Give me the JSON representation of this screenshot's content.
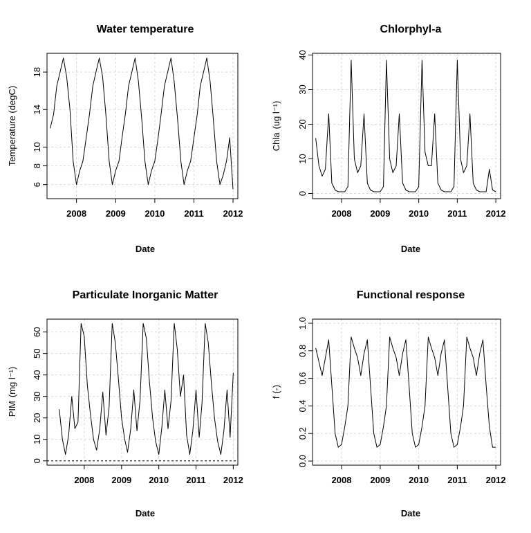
{
  "chart_data": [
    {
      "type": "line",
      "title": "Water temperature",
      "xlabel": "Date",
      "ylabel": "Temperature (degC)",
      "xticks": [
        "2008",
        "2009",
        "2010",
        "2011",
        "2012"
      ],
      "xlim": [
        "2007-04-01",
        "2012-02-15"
      ],
      "yticks": [
        6,
        8,
        10,
        14,
        18
      ],
      "ylim": [
        4.5,
        20.0
      ],
      "grid": true,
      "series": [
        {
          "x": [
            "2007-05-01",
            "2007-06-01",
            "2007-07-01",
            "2007-08-01",
            "2007-09-01",
            "2007-10-01",
            "2007-11-01",
            "2007-12-01",
            "2008-01-01",
            "2008-02-01",
            "2008-03-01",
            "2008-04-01",
            "2008-05-01",
            "2008-06-01",
            "2008-07-01",
            "2008-08-01",
            "2008-09-01",
            "2008-10-01",
            "2008-11-01",
            "2008-12-01",
            "2009-01-01",
            "2009-02-01",
            "2009-03-01",
            "2009-04-01",
            "2009-05-01",
            "2009-06-01",
            "2009-07-01",
            "2009-08-01",
            "2009-09-01",
            "2009-10-01",
            "2009-11-01",
            "2009-12-01",
            "2010-01-01",
            "2010-02-01",
            "2010-03-01",
            "2010-04-01",
            "2010-05-01",
            "2010-06-01",
            "2010-07-01",
            "2010-08-01",
            "2010-09-01",
            "2010-10-01",
            "2010-11-01",
            "2010-12-01",
            "2011-01-01",
            "2011-02-01",
            "2011-03-01",
            "2011-04-01",
            "2011-05-01",
            "2011-06-01",
            "2011-07-01",
            "2011-08-01",
            "2011-09-01",
            "2011-10-01",
            "2011-11-01",
            "2011-12-01",
            "2012-01-01"
          ],
          "values": [
            12.0,
            13.5,
            16.5,
            18.0,
            19.5,
            17.5,
            14.0,
            8.5,
            6.0,
            7.5,
            8.5,
            11.0,
            13.5,
            16.5,
            18.0,
            19.5,
            17.5,
            13.5,
            8.5,
            6.0,
            7.5,
            8.5,
            11.0,
            13.5,
            16.5,
            18.0,
            19.5,
            17.0,
            13.0,
            8.5,
            6.0,
            7.5,
            8.5,
            11.0,
            13.5,
            16.5,
            18.0,
            19.5,
            17.0,
            13.0,
            8.5,
            6.0,
            7.5,
            8.5,
            11.0,
            13.5,
            16.5,
            18.0,
            19.5,
            17.0,
            13.0,
            8.5,
            6.0,
            7.0,
            8.5,
            11.0,
            5.5
          ]
        }
      ]
    },
    {
      "type": "line",
      "title": "Chlorphyl-a",
      "xlabel": "Date",
      "ylabel": "Chla",
      "ylabel_unit": "(ug l⁻¹)",
      "xticks": [
        "2008",
        "2009",
        "2010",
        "2011",
        "2012"
      ],
      "xlim": [
        "2007-04-01",
        "2012-02-15"
      ],
      "yticks": [
        0,
        10,
        20,
        30,
        40
      ],
      "ylim": [
        -1.5,
        40.5
      ],
      "grid": true,
      "series": [
        {
          "x": [
            "2007-05-01",
            "2007-06-01",
            "2007-07-01",
            "2007-08-01",
            "2007-09-01",
            "2007-10-01",
            "2007-11-01",
            "2007-12-01",
            "2008-01-01",
            "2008-02-01",
            "2008-03-01",
            "2008-04-01",
            "2008-05-01",
            "2008-06-01",
            "2008-07-01",
            "2008-08-01",
            "2008-09-01",
            "2008-10-01",
            "2008-11-01",
            "2008-12-01",
            "2009-01-01",
            "2009-02-01",
            "2009-03-01",
            "2009-04-01",
            "2009-05-01",
            "2009-06-01",
            "2009-07-01",
            "2009-08-01",
            "2009-09-01",
            "2009-10-01",
            "2009-11-01",
            "2009-12-01",
            "2010-01-01",
            "2010-02-01",
            "2010-03-01",
            "2010-04-01",
            "2010-05-01",
            "2010-06-01",
            "2010-07-01",
            "2010-08-01",
            "2010-09-01",
            "2010-10-01",
            "2010-11-01",
            "2010-12-01",
            "2011-01-01",
            "2011-02-01",
            "2011-03-01",
            "2011-04-01",
            "2011-05-01",
            "2011-06-01",
            "2011-07-01",
            "2011-08-01",
            "2011-09-01",
            "2011-10-01",
            "2011-11-01",
            "2011-12-01",
            "2012-01-01"
          ],
          "values": [
            16.0,
            8.0,
            5.0,
            7.0,
            23.0,
            3.0,
            1.0,
            0.5,
            0.5,
            0.5,
            2.0,
            38.5,
            10.0,
            6.0,
            8.0,
            23.0,
            3.0,
            1.0,
            0.5,
            0.5,
            0.5,
            2.0,
            38.5,
            10.0,
            6.0,
            8.0,
            23.0,
            3.0,
            1.0,
            0.5,
            0.5,
            0.5,
            2.0,
            38.5,
            12.0,
            8.0,
            8.0,
            23.0,
            3.0,
            1.0,
            0.5,
            0.5,
            0.5,
            2.0,
            38.5,
            10.0,
            6.0,
            8.0,
            23.0,
            3.0,
            1.0,
            0.5,
            0.5,
            0.5,
            7.0,
            1.0,
            0.5
          ]
        }
      ]
    },
    {
      "type": "line",
      "title": "Particulate Inorganic Matter",
      "xlabel": "Date",
      "ylabel": "PIM",
      "ylabel_unit": "(mg l⁻¹)",
      "xticks": [
        "2008",
        "2009",
        "2010",
        "2011",
        "2012"
      ],
      "xlim": [
        "2007-01-01",
        "2012-02-15"
      ],
      "yticks": [
        0,
        10,
        20,
        30,
        40,
        50,
        60
      ],
      "ylim": [
        -2.0,
        66.0
      ],
      "grid": true,
      "reference_line": 0,
      "series": [
        {
          "x": [
            "2007-05-01",
            "2007-06-01",
            "2007-07-01",
            "2007-08-01",
            "2007-09-01",
            "2007-10-01",
            "2007-11-01",
            "2007-12-01",
            "2008-01-01",
            "2008-02-01",
            "2008-03-01",
            "2008-04-01",
            "2008-05-01",
            "2008-06-01",
            "2008-07-01",
            "2008-08-01",
            "2008-09-01",
            "2008-10-01",
            "2008-11-01",
            "2008-12-01",
            "2009-01-01",
            "2009-02-01",
            "2009-03-01",
            "2009-04-01",
            "2009-05-01",
            "2009-06-01",
            "2009-07-01",
            "2009-08-01",
            "2009-09-01",
            "2009-10-01",
            "2009-11-01",
            "2009-12-01",
            "2010-01-01",
            "2010-02-01",
            "2010-03-01",
            "2010-04-01",
            "2010-05-01",
            "2010-06-01",
            "2010-07-01",
            "2010-08-01",
            "2010-09-01",
            "2010-10-01",
            "2010-11-01",
            "2010-12-01",
            "2011-01-01",
            "2011-02-01",
            "2011-03-01",
            "2011-04-01",
            "2011-05-01",
            "2011-06-01",
            "2011-07-01",
            "2011-08-01",
            "2011-09-01",
            "2011-10-01",
            "2011-11-01",
            "2011-12-01",
            "2012-01-01"
          ],
          "values": [
            24.0,
            10.0,
            3.0,
            12.0,
            30.0,
            15.0,
            18.0,
            64.0,
            58.0,
            35.0,
            22.0,
            10.0,
            5.0,
            15.0,
            32.0,
            12.0,
            25.0,
            64.0,
            55.0,
            38.0,
            20.0,
            10.0,
            4.0,
            15.0,
            33.0,
            14.0,
            28.0,
            64.0,
            57.0,
            37.0,
            20.0,
            9.0,
            3.0,
            16.0,
            33.0,
            15.0,
            28.0,
            64.0,
            52.0,
            30.0,
            40.0,
            12.0,
            3.0,
            14.0,
            33.0,
            11.0,
            27.0,
            64.0,
            55.0,
            36.0,
            20.0,
            9.0,
            3.0,
            14.0,
            33.0,
            11.0,
            41.0
          ]
        }
      ]
    },
    {
      "type": "line",
      "title": "Functional response",
      "xlabel": "Date",
      "ylabel": "f (-)",
      "xticks": [
        "2008",
        "2009",
        "2010",
        "2011",
        "2012"
      ],
      "xlim": [
        "2007-04-01",
        "2012-02-15"
      ],
      "yticks": [
        0.0,
        0.2,
        0.4,
        0.6,
        0.8,
        1.0
      ],
      "ylim": [
        -0.03,
        1.03
      ],
      "grid": true,
      "series": [
        {
          "x": [
            "2007-05-01",
            "2007-06-01",
            "2007-07-01",
            "2007-08-01",
            "2007-09-01",
            "2007-10-01",
            "2007-11-01",
            "2007-12-01",
            "2008-01-01",
            "2008-02-01",
            "2008-03-01",
            "2008-04-01",
            "2008-05-01",
            "2008-06-01",
            "2008-07-01",
            "2008-08-01",
            "2008-09-01",
            "2008-10-01",
            "2008-11-01",
            "2008-12-01",
            "2009-01-01",
            "2009-02-01",
            "2009-03-01",
            "2009-04-01",
            "2009-05-01",
            "2009-06-01",
            "2009-07-01",
            "2009-08-01",
            "2009-09-01",
            "2009-10-01",
            "2009-11-01",
            "2009-12-01",
            "2010-01-01",
            "2010-02-01",
            "2010-03-01",
            "2010-04-01",
            "2010-05-01",
            "2010-06-01",
            "2010-07-01",
            "2010-08-01",
            "2010-09-01",
            "2010-10-01",
            "2010-11-01",
            "2010-12-01",
            "2011-01-01",
            "2011-02-01",
            "2011-03-01",
            "2011-04-01",
            "2011-05-01",
            "2011-06-01",
            "2011-07-01",
            "2011-08-01",
            "2011-09-01",
            "2011-10-01",
            "2011-11-01",
            "2011-12-01",
            "2012-01-01"
          ],
          "values": [
            0.82,
            0.72,
            0.62,
            0.75,
            0.88,
            0.55,
            0.2,
            0.1,
            0.12,
            0.25,
            0.4,
            0.9,
            0.82,
            0.75,
            0.62,
            0.78,
            0.88,
            0.55,
            0.2,
            0.1,
            0.12,
            0.25,
            0.4,
            0.9,
            0.82,
            0.75,
            0.62,
            0.78,
            0.88,
            0.55,
            0.2,
            0.1,
            0.12,
            0.25,
            0.4,
            0.9,
            0.82,
            0.75,
            0.62,
            0.78,
            0.88,
            0.55,
            0.2,
            0.1,
            0.12,
            0.25,
            0.4,
            0.9,
            0.82,
            0.75,
            0.62,
            0.78,
            0.88,
            0.55,
            0.25,
            0.1,
            0.1
          ]
        }
      ]
    }
  ]
}
